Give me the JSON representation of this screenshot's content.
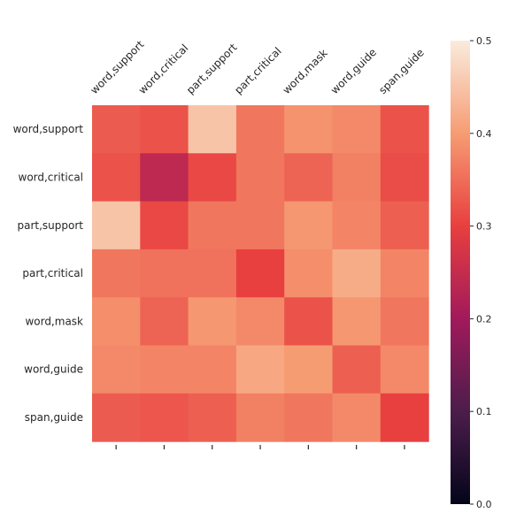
{
  "chart_data": {
    "type": "heatmap",
    "title": "",
    "xlabel": "",
    "ylabel": "",
    "x_labels": [
      "word,support",
      "word,critical",
      "part,support",
      "part,critical",
      "word,mask",
      "word,guide",
      "span,guide"
    ],
    "y_labels": [
      "word,support",
      "word,critical",
      "part,support",
      "part,critical",
      "word,mask",
      "word,guide",
      "span,guide"
    ],
    "values": [
      [
        0.33,
        0.32,
        0.45,
        0.36,
        0.39,
        0.38,
        0.32
      ],
      [
        0.32,
        0.24,
        0.31,
        0.36,
        0.34,
        0.37,
        0.315
      ],
      [
        0.45,
        0.31,
        0.36,
        0.36,
        0.395,
        0.375,
        0.335
      ],
      [
        0.36,
        0.355,
        0.355,
        0.3,
        0.385,
        0.42,
        0.375
      ],
      [
        0.385,
        0.34,
        0.395,
        0.38,
        0.32,
        0.395,
        0.36
      ],
      [
        0.38,
        0.375,
        0.375,
        0.415,
        0.4,
        0.335,
        0.38
      ],
      [
        0.33,
        0.325,
        0.335,
        0.37,
        0.36,
        0.38,
        0.3
      ]
    ],
    "colorbar": {
      "min": 0.0,
      "max": 0.5,
      "ticks": [
        "0.0",
        "0.1",
        "0.2",
        "0.3",
        "0.4",
        "0.5"
      ],
      "colormap": "rocket",
      "stops": [
        "#03051a",
        "#4c1d4b",
        "#a11a5b",
        "#e83f3f",
        "#f69c73",
        "#faebdd"
      ]
    },
    "grid": false,
    "legend": "colorbar-right"
  }
}
